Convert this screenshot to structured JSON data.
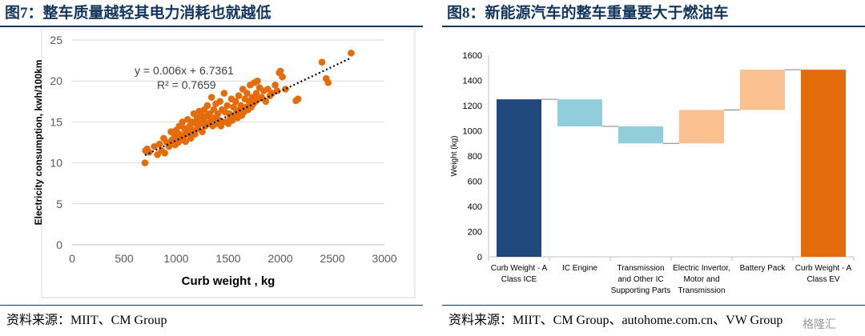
{
  "left": {
    "title": "图7：整车质量越轻其电力消耗也就越低",
    "source": "资料来源：MIIT、CM Group"
  },
  "right": {
    "title": "图8：新能源汽车的整车重量要大于燃油车",
    "source": "资料来源：MIIT、CM Group、autohome.com.cn、VW Group"
  },
  "watermark": "格隆汇",
  "chart_data": [
    {
      "type": "scatter",
      "xlabel": "Curb weight , kg",
      "ylabel": "Electricity consumption, kwh/100km",
      "xlim": [
        0,
        3000
      ],
      "ylim": [
        0,
        25
      ],
      "xticks": [
        0,
        500,
        1000,
        1500,
        2000,
        2500,
        3000
      ],
      "yticks": [
        0,
        5,
        10,
        15,
        20,
        25
      ],
      "grid": "horizontal",
      "marker_color": "#e46c0a",
      "trendline": {
        "slope": 0.006,
        "intercept": 6.7361,
        "equation": "y = 0.006x + 6.7361",
        "r2": "R² = 0.7659",
        "style": "dotted"
      },
      "points": [
        [
          700,
          10.0
        ],
        [
          705,
          11.5
        ],
        [
          720,
          11.7
        ],
        [
          740,
          11.3
        ],
        [
          790,
          12.0
        ],
        [
          820,
          11.0
        ],
        [
          840,
          12.3
        ],
        [
          860,
          11.5
        ],
        [
          880,
          13.0
        ],
        [
          890,
          11.2
        ],
        [
          910,
          12.5
        ],
        [
          930,
          12.0
        ],
        [
          950,
          13.8
        ],
        [
          960,
          12.8
        ],
        [
          980,
          13.5
        ],
        [
          990,
          12.2
        ],
        [
          1000,
          14.0
        ],
        [
          1010,
          13.0
        ],
        [
          1020,
          12.5
        ],
        [
          1030,
          14.5
        ],
        [
          1040,
          13.5
        ],
        [
          1050,
          12.8
        ],
        [
          1060,
          15.0
        ],
        [
          1070,
          13.2
        ],
        [
          1080,
          14.2
        ],
        [
          1090,
          12.6
        ],
        [
          1100,
          13.8
        ],
        [
          1110,
          15.3
        ],
        [
          1120,
          13.5
        ],
        [
          1130,
          14.5
        ],
        [
          1140,
          13.0
        ],
        [
          1150,
          15.0
        ],
        [
          1160,
          14.0
        ],
        [
          1170,
          16.0
        ],
        [
          1180,
          13.5
        ],
        [
          1190,
          14.8
        ],
        [
          1200,
          15.5
        ],
        [
          1210,
          14.2
        ],
        [
          1220,
          16.3
        ],
        [
          1230,
          14.8
        ],
        [
          1240,
          15.8
        ],
        [
          1250,
          13.8
        ],
        [
          1260,
          15.2
        ],
        [
          1270,
          16.5
        ],
        [
          1280,
          14.5
        ],
        [
          1290,
          15.7
        ],
        [
          1300,
          17.0
        ],
        [
          1310,
          14.8
        ],
        [
          1320,
          16.0
        ],
        [
          1330,
          15.2
        ],
        [
          1340,
          18.0
        ],
        [
          1350,
          14.5
        ],
        [
          1360,
          16.5
        ],
        [
          1370,
          15.5
        ],
        [
          1380,
          17.2
        ],
        [
          1390,
          14.8
        ],
        [
          1400,
          16.0
        ],
        [
          1410,
          15.2
        ],
        [
          1420,
          17.5
        ],
        [
          1430,
          14.5
        ],
        [
          1440,
          16.5
        ],
        [
          1450,
          15.0
        ],
        [
          1460,
          18.5
        ],
        [
          1470,
          16.2
        ],
        [
          1480,
          15.0
        ],
        [
          1490,
          17.0
        ],
        [
          1500,
          14.8
        ],
        [
          1510,
          16.0
        ],
        [
          1520,
          15.5
        ],
        [
          1530,
          17.8
        ],
        [
          1540,
          15.2
        ],
        [
          1550,
          16.8
        ],
        [
          1560,
          15.8
        ],
        [
          1570,
          17.5
        ],
        [
          1580,
          16.2
        ],
        [
          1590,
          15.5
        ],
        [
          1600,
          18.2
        ],
        [
          1610,
          16.5
        ],
        [
          1620,
          17.0
        ],
        [
          1630,
          15.8
        ],
        [
          1640,
          19.0
        ],
        [
          1650,
          16.2
        ],
        [
          1660,
          17.8
        ],
        [
          1670,
          16.8
        ],
        [
          1680,
          18.5
        ],
        [
          1690,
          16.5
        ],
        [
          1700,
          17.5
        ],
        [
          1710,
          19.5
        ],
        [
          1720,
          16.8
        ],
        [
          1730,
          18.0
        ],
        [
          1740,
          17.2
        ],
        [
          1750,
          19.8
        ],
        [
          1760,
          17.5
        ],
        [
          1770,
          18.5
        ],
        [
          1780,
          20.0
        ],
        [
          1790,
          17.8
        ],
        [
          1800,
          19.2
        ],
        [
          1820,
          18.0
        ],
        [
          1840,
          18.8
        ],
        [
          1860,
          17.5
        ],
        [
          1880,
          19.0
        ],
        [
          1900,
          18.2
        ],
        [
          1920,
          18.5
        ],
        [
          1950,
          19.5
        ],
        [
          1970,
          18.8
        ],
        [
          1990,
          21.0
        ],
        [
          2000,
          21.2
        ],
        [
          2020,
          20.5
        ],
        [
          2050,
          19.0
        ],
        [
          2150,
          17.6
        ],
        [
          2170,
          17.8
        ],
        [
          2400,
          22.3
        ],
        [
          2440,
          20.3
        ],
        [
          2460,
          19.8
        ],
        [
          2680,
          23.4
        ]
      ]
    },
    {
      "type": "bar",
      "subtype": "waterfall",
      "ylabel": "Weight (kg)",
      "ylim": [
        0,
        1600
      ],
      "yticks": [
        0,
        200,
        400,
        600,
        800,
        1000,
        1200,
        1400,
        1600
      ],
      "categories": [
        [
          "Curb Weight - A",
          "Class ICE"
        ],
        [
          "IC Engine"
        ],
        [
          "Transmission",
          "and Other IC",
          "Supporting Parts"
        ],
        [
          "Electric Invertor,",
          "Motor and",
          "Transmission"
        ],
        [
          "Battery Pack"
        ],
        [
          "Curb Weight - A",
          "Class EV"
        ]
      ],
      "steps": [
        {
          "kind": "total",
          "value": 1250,
          "color": "#1f497d"
        },
        {
          "kind": "delta",
          "value": -215,
          "color": "#92cddc"
        },
        {
          "kind": "delta",
          "value": -135,
          "color": "#92cddc"
        },
        {
          "kind": "delta",
          "value": 265,
          "color": "#fac090"
        },
        {
          "kind": "delta",
          "value": 320,
          "color": "#fac090"
        },
        {
          "kind": "total",
          "value": 1485,
          "color": "#e46c0a"
        }
      ]
    }
  ]
}
